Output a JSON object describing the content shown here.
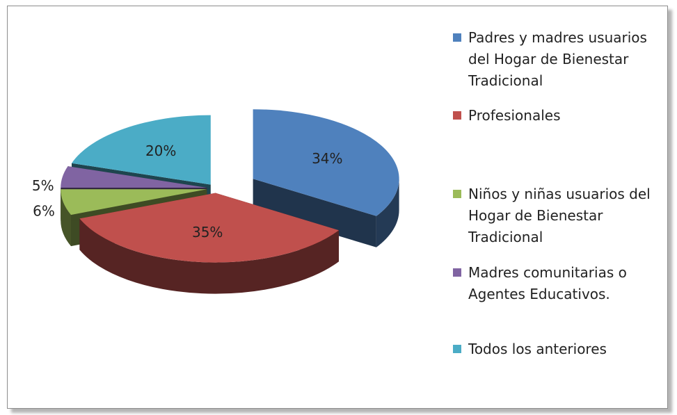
{
  "chart_data": {
    "type": "pie",
    "categories": [
      "Padres y madres usuarios del Hogar de Bienestar Tradicional",
      "Profesionales",
      "Niños y niñas usuarios del Hogar de Bienestar Tradicional",
      "Madres comunitarias o Agentes Educativos.",
      "Todos los anteriores"
    ],
    "values": [
      34,
      35,
      6,
      5,
      20
    ],
    "value_labels": [
      "34%",
      "35%",
      "6%",
      "5%",
      "20%"
    ],
    "colors": [
      "#4f81bd",
      "#c0504d",
      "#9bbb59",
      "#8064a2",
      "#4bacc6"
    ],
    "legend": "right"
  }
}
